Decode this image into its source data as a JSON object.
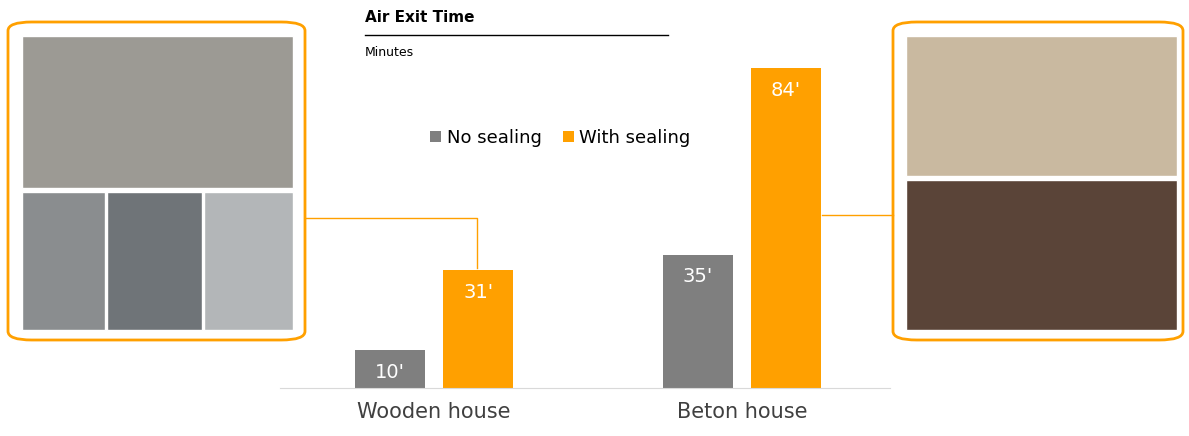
{
  "chart_data": {
    "type": "bar",
    "title": "Air Exit Time",
    "subtitle": "Minutes",
    "categories": [
      "Wooden house",
      "Beton house"
    ],
    "series": [
      {
        "name": "No sealing",
        "color": "#7f7f7f",
        "values": [
          10,
          35
        ],
        "value_labels": [
          "10'",
          "35'"
        ]
      },
      {
        "name": "With sealing",
        "color": "#ffa000",
        "values": [
          31,
          84
        ],
        "value_labels": [
          "31'",
          "84'"
        ]
      }
    ],
    "legend": "upper center",
    "data_labels": true,
    "tick_labels": "x",
    "grid": false
  }
}
